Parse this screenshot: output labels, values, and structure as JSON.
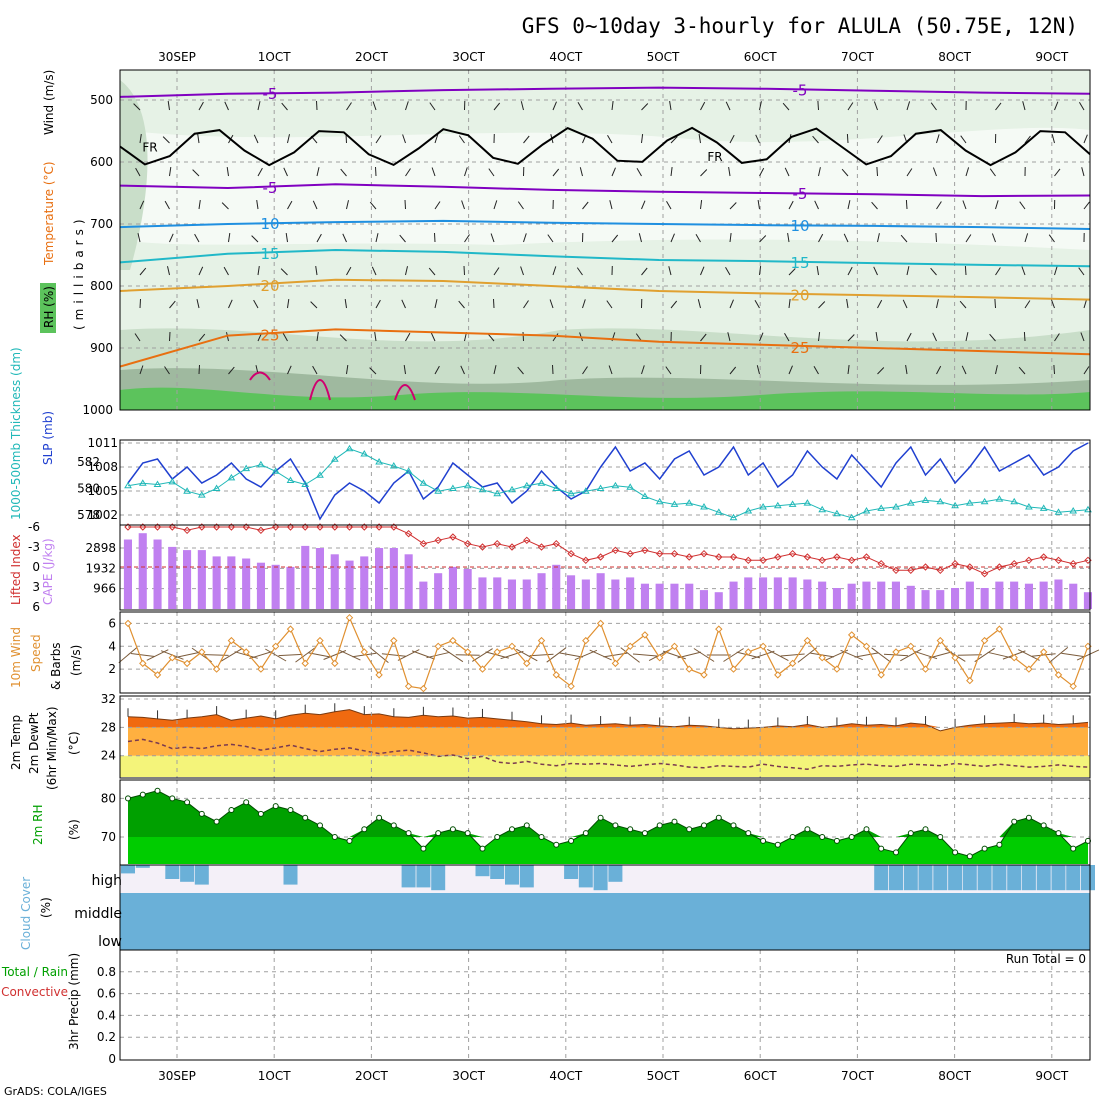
{
  "header": {
    "title": "GFS 0~10day 3-hourly for ALULA (50.75E, 12N)",
    "footer": "GrADS: COLA/IGES",
    "run_total": "Run Total = 0"
  },
  "time_axis": [
    "30SEP",
    "1OCT",
    "2OCT",
    "3OCT",
    "4OCT",
    "5OCT",
    "6OCT",
    "7OCT",
    "8OCT",
    "9OCT"
  ],
  "colors": {
    "rh_light": "#e6f2e6",
    "rh_mid": "#c9dec9",
    "rh_dark": "#9fb99f",
    "rh_green": "#5cc35c",
    "iso_m5": "#8000c0",
    "iso_10": "#1f8fe0",
    "iso_15": "#20b8c8",
    "iso_20": "#e0a030",
    "iso_25": "#e86f10",
    "iso_30": "#d0006f",
    "slp": "#2040d0",
    "thick": "#20b8b8",
    "cape": "#c080f0",
    "li": "#d03030",
    "wind": "#e09030",
    "temp": "#f06a10",
    "temp_fill": "#ffb040",
    "dew_fill": "#f4f47a",
    "rh2m": "#00cc00",
    "rh2m_dark": "#00a000",
    "cloud": "#6ab0d8",
    "cloud_bg": "#f4f0f8"
  },
  "chart_data": [
    {
      "type": "heatmap",
      "title": "RH (%) / Temperature (°C) / Wind (m/s)",
      "ylabel": "millibars",
      "y_ticks": [
        500,
        600,
        700,
        800,
        900,
        1000
      ],
      "label_rh": "RH (%)",
      "label_temp": "Temperature (°C)",
      "label_wind": "Wind (m/s)",
      "label_mb": "(millibars)",
      "isotherms": [
        {
          "value": -5,
          "label": "-5",
          "levels": [
            495,
            490,
            488,
            484,
            482,
            480,
            482,
            485,
            488,
            490
          ]
        },
        {
          "value": -5,
          "label": "-5",
          "levels": [
            638,
            642,
            636,
            640,
            645,
            648,
            650,
            652,
            655,
            654
          ]
        },
        {
          "value": 10,
          "label": "10",
          "levels": [
            705,
            700,
            697,
            695,
            698,
            700,
            702,
            703,
            705,
            708
          ]
        },
        {
          "value": 15,
          "label": "15",
          "levels": [
            762,
            748,
            742,
            745,
            752,
            758,
            760,
            763,
            766,
            768
          ]
        },
        {
          "value": 20,
          "label": "20",
          "levels": [
            808,
            800,
            790,
            792,
            800,
            808,
            812,
            815,
            818,
            822
          ]
        },
        {
          "value": 25,
          "label": "25",
          "levels": [
            930,
            880,
            870,
            875,
            880,
            890,
            895,
            900,
            905,
            910
          ]
        }
      ],
      "freezing_label": "FR"
    },
    {
      "type": "line",
      "ylabel_left": "1000-500mb Thickness (dm)",
      "ylabel_right": "SLP (mb)",
      "left_ticks": [
        578,
        580,
        582
      ],
      "right_ticks": [
        1002,
        1005,
        1008,
        1011
      ],
      "series": [
        {
          "name": "SLP (mb)",
          "values": [
            1006.0,
            1008.5,
            1009.0,
            1006.5,
            1008.0,
            1006.0,
            1007.0,
            1008.5,
            1006.5,
            1005.5,
            1007.5,
            1009.0,
            1006.0,
            1001.5,
            1004.5,
            1006.0,
            1005.0,
            1003.5,
            1006.0,
            1007.5,
            1004.0,
            1005.5,
            1008.5,
            1007.0,
            1005.5,
            1006.0,
            1003.5,
            1005.0,
            1007.5,
            1005.5,
            1004.0,
            1005.0,
            1008.0,
            1010.5,
            1007.5,
            1008.5,
            1006.5,
            1009.0,
            1010.0,
            1007.0,
            1008.0,
            1010.5,
            1007.0,
            1008.5,
            1005.5,
            1007.0,
            1010.0,
            1008.0,
            1006.5,
            1009.5,
            1007.5,
            1005.5,
            1008.5,
            1010.5,
            1007.0,
            1009.0,
            1006.0,
            1008.0,
            1010.5,
            1007.5,
            1008.5,
            1009.5,
            1007.0,
            1008.0,
            1010.0,
            1011.0
          ]
        },
        {
          "name": "1000-500mb Thickness (dm)",
          "values": [
            580.2,
            580.4,
            580.3,
            580.5,
            579.8,
            579.5,
            580.0,
            580.8,
            581.5,
            581.8,
            581.3,
            580.6,
            580.3,
            581.0,
            582.2,
            583.0,
            582.6,
            582.0,
            581.7,
            581.3,
            580.4,
            579.8,
            580.0,
            580.2,
            579.9,
            579.6,
            579.9,
            580.2,
            580.4,
            580.0,
            579.6,
            579.8,
            580.0,
            580.2,
            580.1,
            579.4,
            579.0,
            578.8,
            578.9,
            578.6,
            578.2,
            577.8,
            578.3,
            578.6,
            578.7,
            578.8,
            578.9,
            578.4,
            578.1,
            577.8,
            578.3,
            578.5,
            578.6,
            578.9,
            579.1,
            579.0,
            578.7,
            578.9,
            579.0,
            579.2,
            579.0,
            578.6,
            578.5,
            578.2,
            578.3,
            578.4
          ]
        }
      ]
    },
    {
      "type": "bar",
      "ylabel_left": "Lifted Index",
      "ylabel_right": "CAPE (J/kg)",
      "li_ticks": [
        -6,
        -3,
        0,
        3,
        6
      ],
      "cape_ticks": [
        966,
        1932,
        2898
      ],
      "series": [
        {
          "name": "CAPE (J/kg)",
          "values": [
            3300,
            3600,
            3300,
            2950,
            2800,
            2800,
            2500,
            2500,
            2400,
            2200,
            2100,
            2000,
            3000,
            2900,
            2600,
            2300,
            2500,
            2900,
            2900,
            2600,
            1300,
            1700,
            2000,
            1900,
            1500,
            1500,
            1400,
            1400,
            1700,
            2100,
            1600,
            1400,
            1700,
            1400,
            1500,
            1200,
            1200,
            1200,
            1200,
            900,
            800,
            1300,
            1500,
            1500,
            1500,
            1500,
            1400,
            1300,
            1000,
            1200,
            1300,
            1300,
            1300,
            1100,
            900,
            900,
            1000,
            1300,
            1000,
            1300,
            1300,
            1200,
            1300,
            1400,
            1200,
            800
          ]
        },
        {
          "name": "Lifted Index",
          "values": [
            -6.5,
            -6.5,
            -6.5,
            -6.0,
            -5.5,
            -6.5,
            -6.5,
            -6.0,
            -6.5,
            -5.5,
            -6.0,
            -6.5,
            -6.5,
            -6.5,
            -6.0,
            -6.5,
            -6.0,
            -6.5,
            -6.5,
            -5.0,
            -3.5,
            -4.0,
            -4.5,
            -3.5,
            -3.0,
            -3.5,
            -3.0,
            -4.0,
            -3.0,
            -3.5,
            -2.0,
            -1.0,
            -1.5,
            -2.5,
            -2.0,
            -2.5,
            -2.0,
            -2.0,
            -1.5,
            -2.0,
            -1.5,
            -1.5,
            -1.0,
            -1.0,
            -1.5,
            -2.0,
            -1.5,
            -1.0,
            -1.5,
            -1.0,
            -1.5,
            -0.5,
            0.5,
            0.5,
            0.0,
            0.5,
            -0.5,
            0.0,
            1.0,
            0.0,
            -0.5,
            -1.0,
            -1.5,
            -1.0,
            -0.5,
            -1.0
          ]
        }
      ]
    },
    {
      "type": "line",
      "ylabel": "10m Wind Speed & Barbs (m/s)",
      "label_a": "10m Wind",
      "label_b": "Speed",
      "label_c": "& Barbs",
      "label_units": "(m/s)",
      "y_ticks": [
        2,
        4,
        6
      ],
      "ylim": [
        0,
        7
      ],
      "series": [
        {
          "name": "10m Wind Speed",
          "values": [
            6.0,
            2.5,
            1.5,
            3.0,
            2.5,
            3.5,
            2.0,
            4.5,
            3.5,
            2.0,
            4.0,
            5.5,
            2.5,
            4.5,
            2.5,
            6.5,
            3.5,
            1.5,
            4.5,
            0.5,
            0.3,
            4.0,
            4.5,
            3.5,
            2.0,
            3.5,
            4.0,
            2.5,
            4.5,
            1.5,
            0.5,
            4.5,
            6.0,
            2.5,
            4.0,
            5.0,
            3.0,
            4.0,
            2.0,
            1.5,
            5.5,
            2.0,
            3.5,
            4.0,
            1.5,
            2.5,
            4.5,
            3.0,
            2.0,
            5.0,
            4.0,
            1.5,
            3.5,
            4.0,
            2.0,
            4.5,
            3.0,
            1.0,
            4.5,
            5.5,
            3.0,
            2.0,
            3.5,
            1.5,
            0.5,
            4.0
          ]
        }
      ]
    },
    {
      "type": "area",
      "ylabel": "2m Temp 2m DewPt (6hr Min/Max) (°C)",
      "label_a": "2m Temp",
      "label_b": "2m DewPt",
      "label_c": "(6hr Min/Max)",
      "label_units": "(°C)",
      "y_ticks": [
        24,
        28,
        32
      ],
      "ylim": [
        21,
        32
      ],
      "series": [
        {
          "name": "2m Temp",
          "values": [
            29.5,
            29.4,
            29.2,
            29.0,
            29.3,
            29.5,
            29.8,
            29.0,
            29.3,
            29.6,
            29.2,
            29.7,
            30.0,
            29.8,
            30.2,
            30.5,
            29.8,
            29.9,
            29.5,
            29.4,
            29.7,
            29.5,
            29.6,
            29.3,
            29.4,
            29.2,
            29.0,
            28.8,
            28.5,
            28.4,
            28.6,
            28.3,
            28.4,
            28.5,
            28.3,
            28.4,
            28.2,
            28.1,
            28.3,
            28.2,
            28.0,
            27.8,
            27.9,
            28.0,
            28.2,
            28.1,
            28.4,
            28.0,
            28.2,
            28.5,
            28.3,
            28.4,
            28.2,
            28.6,
            28.4,
            27.5,
            28.0,
            28.3,
            28.5,
            28.6,
            28.7,
            28.5,
            28.6,
            28.4,
            28.5,
            28.7
          ]
        },
        {
          "name": "2m DewPt",
          "values": [
            26.0,
            26.3,
            25.8,
            25.0,
            25.2,
            25.0,
            25.4,
            25.6,
            25.3,
            24.8,
            25.1,
            25.5,
            25.0,
            24.6,
            24.9,
            25.1,
            24.7,
            24.3,
            24.6,
            24.8,
            24.4,
            23.9,
            24.1,
            23.6,
            23.9,
            23.1,
            22.9,
            23.2,
            22.8,
            22.6,
            22.9,
            22.8,
            22.9,
            22.7,
            22.5,
            22.7,
            22.9,
            22.7,
            22.4,
            22.3,
            22.6,
            22.5,
            22.4,
            22.8,
            22.5,
            22.3,
            22.1,
            22.6,
            22.5,
            22.7,
            22.8,
            22.6,
            22.5,
            22.8,
            22.7,
            22.6,
            22.9,
            22.7,
            22.5,
            22.8,
            22.6,
            22.4,
            22.5,
            22.7,
            22.5,
            22.4
          ]
        }
      ]
    },
    {
      "type": "area",
      "ylabel": "2m RH (%)",
      "label_a": "2m RH",
      "label_units": "(%)",
      "y_ticks": [
        70,
        80
      ],
      "ylim": [
        63,
        84
      ],
      "series": [
        {
          "name": "2m RH",
          "values": [
            80,
            81,
            82,
            80,
            79,
            76,
            74,
            77,
            79,
            76,
            78,
            77,
            75,
            73,
            70,
            69,
            72,
            75,
            73,
            71,
            67,
            71,
            72,
            71,
            67,
            70,
            72,
            73,
            70,
            68,
            69,
            71,
            75,
            73,
            72,
            71,
            73,
            74,
            72,
            73,
            75,
            73,
            71,
            69,
            68,
            70,
            72,
            70,
            69,
            70,
            72,
            67,
            66,
            71,
            72,
            70,
            66,
            65,
            67,
            68,
            74,
            75,
            73,
            71,
            67,
            69
          ]
        }
      ]
    },
    {
      "type": "bar",
      "ylabel": "Cloud Cover (%)",
      "label_a": "Cloud Cover",
      "label_units": "(%)",
      "levels": [
        "high",
        "middle",
        "low"
      ]
    },
    {
      "type": "bar",
      "ylabel": "3hr Precip (mm)",
      "label_a": "Total / Rain",
      "label_b": "Convective",
      "label_c": "3hr Precip (mm)",
      "y_ticks": [
        0,
        0.2,
        0.4,
        0.6,
        0.8
      ],
      "ylim": [
        0,
        1
      ],
      "values": []
    }
  ]
}
